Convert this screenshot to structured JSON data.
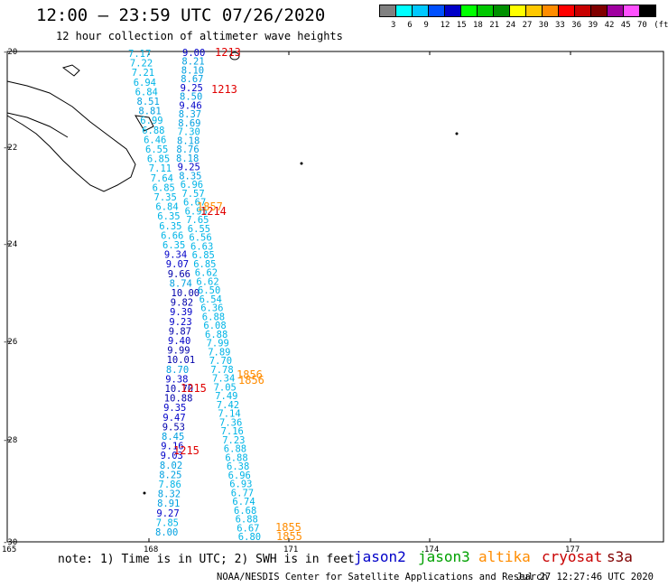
{
  "title": "12:00 — 23:59 UTC 07/26/2020",
  "subtitle": "12 hour collection of altimeter wave heights",
  "color_scale": {
    "unit": "(ft)",
    "labels": [
      "3",
      "6",
      "9",
      "12",
      "15",
      "18",
      "21",
      "24",
      "27",
      "30",
      "33",
      "36",
      "39",
      "42",
      "45",
      "70"
    ],
    "colors": [
      "#808080",
      "#00ffff",
      "#00c8ff",
      "#0050ff",
      "#0000c8",
      "#00ff00",
      "#00c800",
      "#009000",
      "#ffff00",
      "#ffc800",
      "#ff8c00",
      "#ff0000",
      "#c80000",
      "#800000",
      "#a000a0",
      "#ff50ff",
      "#000000"
    ]
  },
  "axes": {
    "lat_labels": [
      "-20",
      "-22",
      "-24",
      "-26",
      "-28",
      "-30"
    ],
    "lon_labels": [
      "165",
      "168",
      "171",
      "174",
      "177"
    ]
  },
  "tracks": {
    "track1": [
      "7.17",
      "7.22",
      "7.21",
      "6.94",
      "6.84",
      "8.51",
      "8.81",
      "6.99",
      "6.88",
      "6.46",
      "6.55",
      "6.85",
      "7.11",
      "7.64",
      "6.85",
      "7.35",
      "6.84",
      "6.35",
      "6.35",
      "6.66",
      "6.35",
      "9.34",
      "9.07",
      "9.66",
      "8.74",
      "10.00",
      "9.82",
      "9.39",
      "9.23",
      "9.87",
      "9.40",
      "9.99",
      "10.01",
      "8.70",
      "9.38",
      "10.70",
      "10.88",
      "9.35",
      "9.47",
      "9.53",
      "8.45",
      "9.16",
      "9.03",
      "8.02",
      "8.25",
      "7.86",
      "8.32",
      "8.91",
      "9.27",
      "7.85",
      "8.00"
    ],
    "track2": [
      "9.00",
      "8.21",
      "8.10",
      "8.67",
      "9.25",
      "8.50",
      "9.46",
      "8.37",
      "8.69",
      "7.30",
      "8.18",
      "8.76",
      "8.18",
      "9.25",
      "8.35",
      "6.96",
      "7.57",
      "6.67",
      "6.95",
      "7.65",
      "6.55",
      "6.56",
      "6.63",
      "6.85",
      "6.85",
      "6.62",
      "6.62",
      "6.50",
      "6.54",
      "6.36",
      "6.88",
      "6.08",
      "6.88",
      "7.99",
      "7.89",
      "7.70",
      "7.78",
      "7.34",
      "7.05",
      "7.49",
      "7.42",
      "7.14",
      "7.36",
      "7.16",
      "7.23",
      "6.88",
      "6.88",
      "6.38",
      "6.96",
      "6.93",
      "6.77",
      "6.74",
      "6.68",
      "6.88",
      "6.67",
      "6.80"
    ],
    "times_red": [
      "1213",
      "1213",
      "1214",
      "1215",
      "1215"
    ],
    "times_orange": [
      "1857",
      "1856",
      "1856",
      "1855",
      "1855"
    ]
  },
  "note": "note: 1) Time is in UTC; 2) SWH is in feet",
  "missions": [
    {
      "name": "jason2",
      "color": "#0000c8"
    },
    {
      "name": "jason3",
      "color": "#00a000"
    },
    {
      "name": "altika",
      "color": "#ff8c00"
    },
    {
      "name": "cryosat",
      "color": "#c80000"
    },
    {
      "name": "s3a",
      "color": "#800000"
    }
  ],
  "credit": "NOAA/NESDIS Center for Satellite Applications and Research",
  "timestamp": "Jul 27 12:27:46 UTC 2020"
}
